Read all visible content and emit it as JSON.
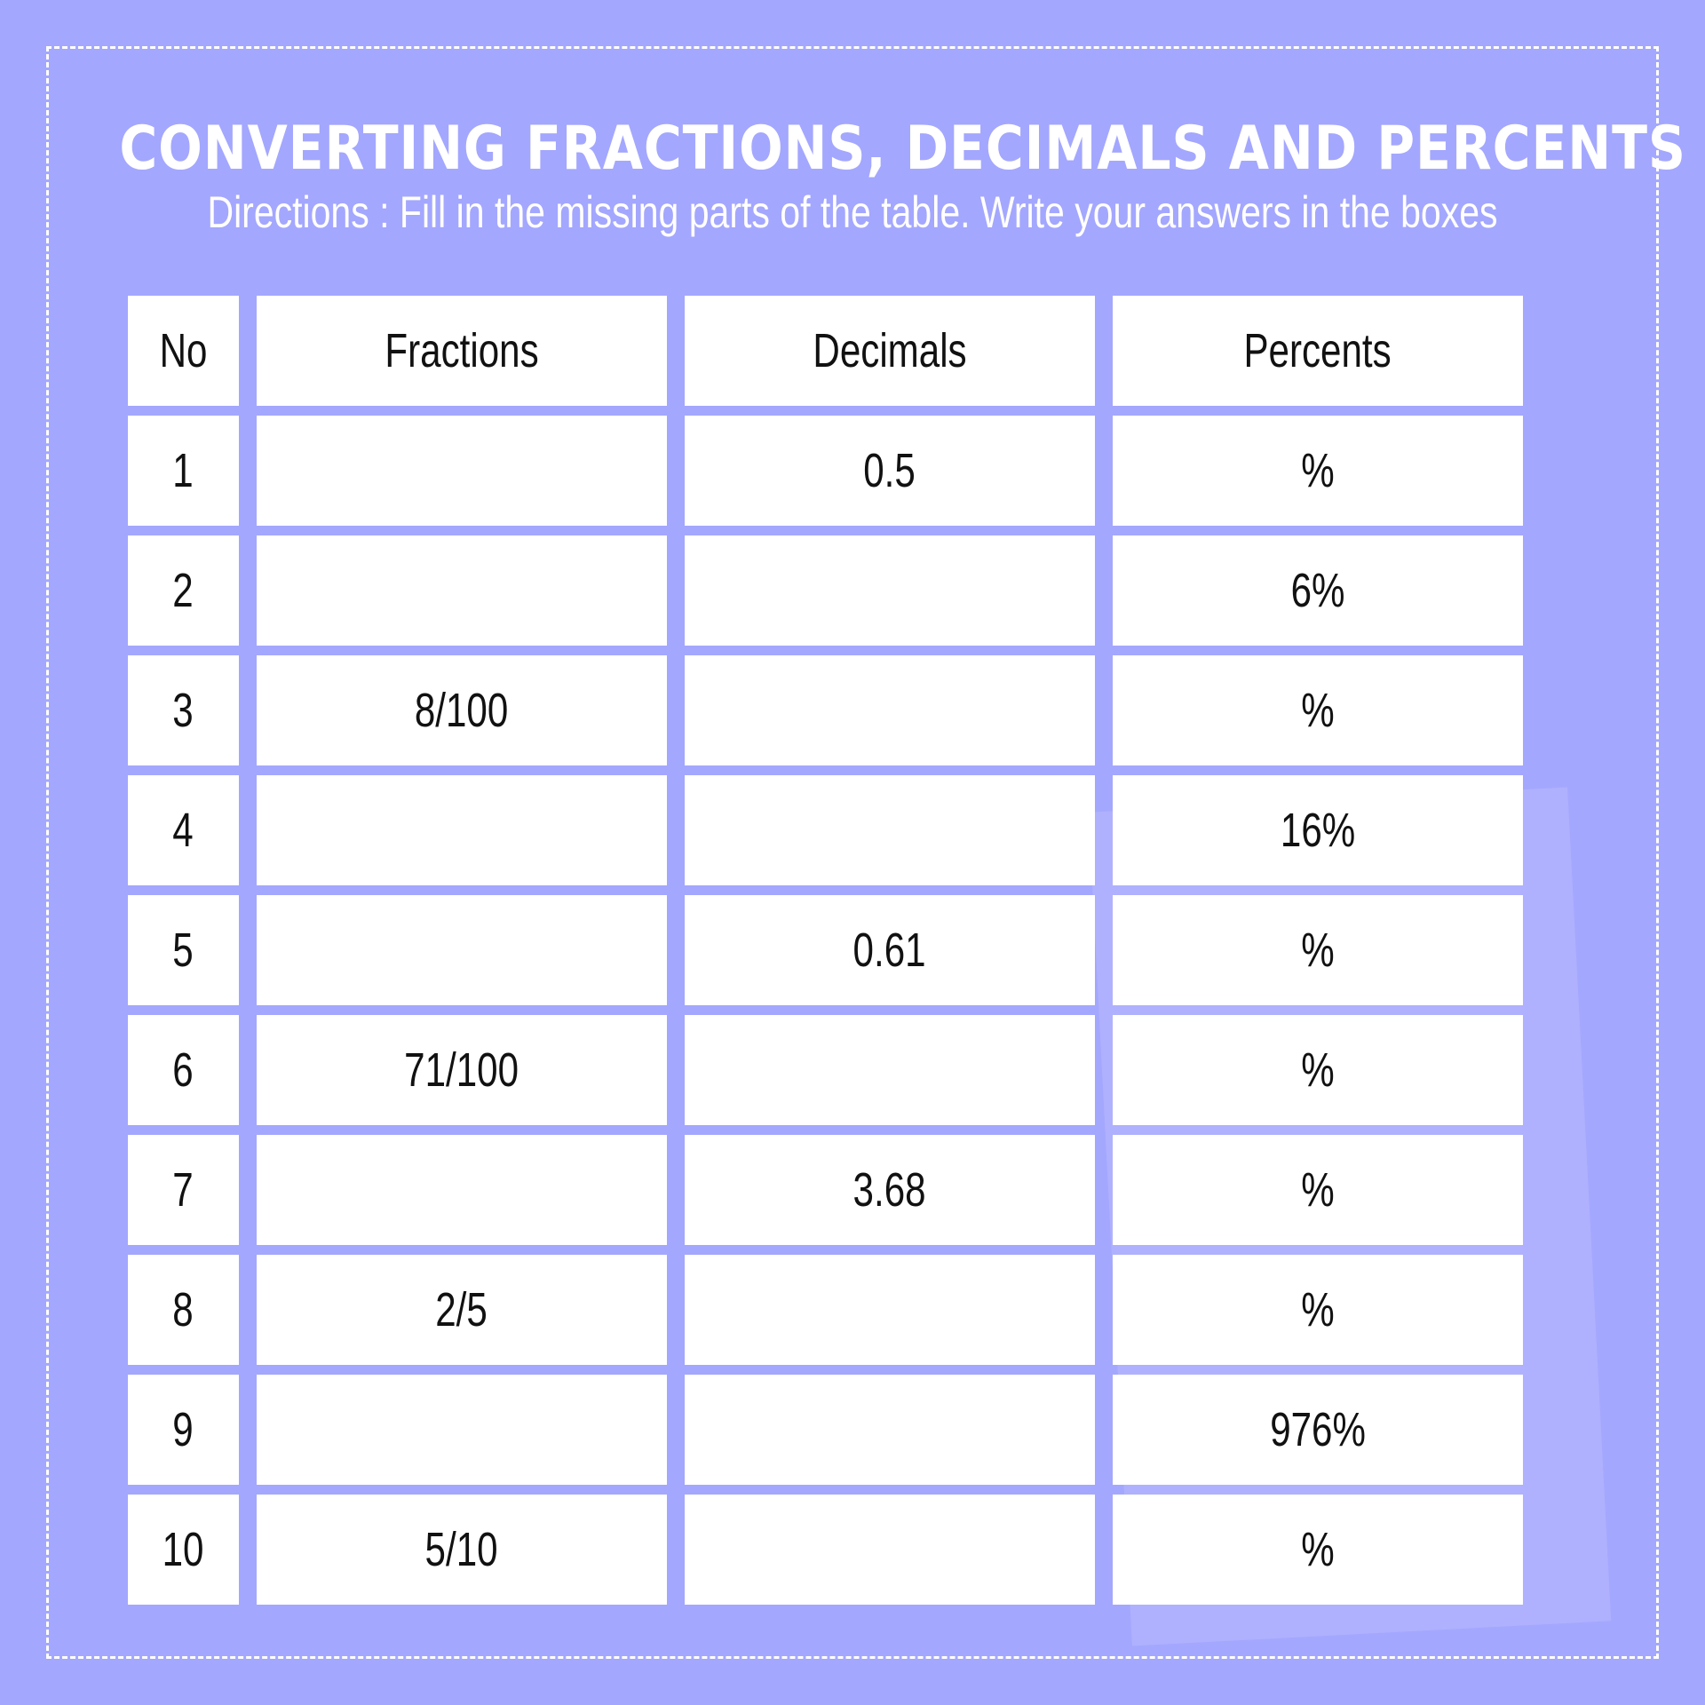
{
  "worksheet": {
    "title": "CONVERTING FRACTIONS, DECIMALS AND PERCENTS",
    "directions": "Directions : Fill in the missing parts of the table. Write your answers in the boxes"
  },
  "table": {
    "headers": {
      "no": "No",
      "fractions": "Fractions",
      "decimals": "Decimals",
      "percents": "Percents"
    },
    "rows": [
      {
        "no": "1",
        "fraction": "",
        "decimal": "0.5",
        "percent": "%"
      },
      {
        "no": "2",
        "fraction": "",
        "decimal": "",
        "percent": "6%"
      },
      {
        "no": "3",
        "fraction": "8/100",
        "decimal": "",
        "percent": "%"
      },
      {
        "no": "4",
        "fraction": "",
        "decimal": "",
        "percent": "16%"
      },
      {
        "no": "5",
        "fraction": "",
        "decimal": "0.61",
        "percent": "%"
      },
      {
        "no": "6",
        "fraction": "71/100",
        "decimal": "",
        "percent": "%"
      },
      {
        "no": "7",
        "fraction": "",
        "decimal": "3.68",
        "percent": "%"
      },
      {
        "no": "8",
        "fraction": "2/5",
        "decimal": "",
        "percent": "%"
      },
      {
        "no": "9",
        "fraction": "",
        "decimal": "",
        "percent": "976%"
      },
      {
        "no": "10",
        "fraction": "5/10",
        "decimal": "",
        "percent": "%"
      }
    ]
  },
  "colors": {
    "background": "#a4a7fe",
    "cell": "#ffffff",
    "text": "#111111",
    "heading_text": "#ffffff"
  }
}
